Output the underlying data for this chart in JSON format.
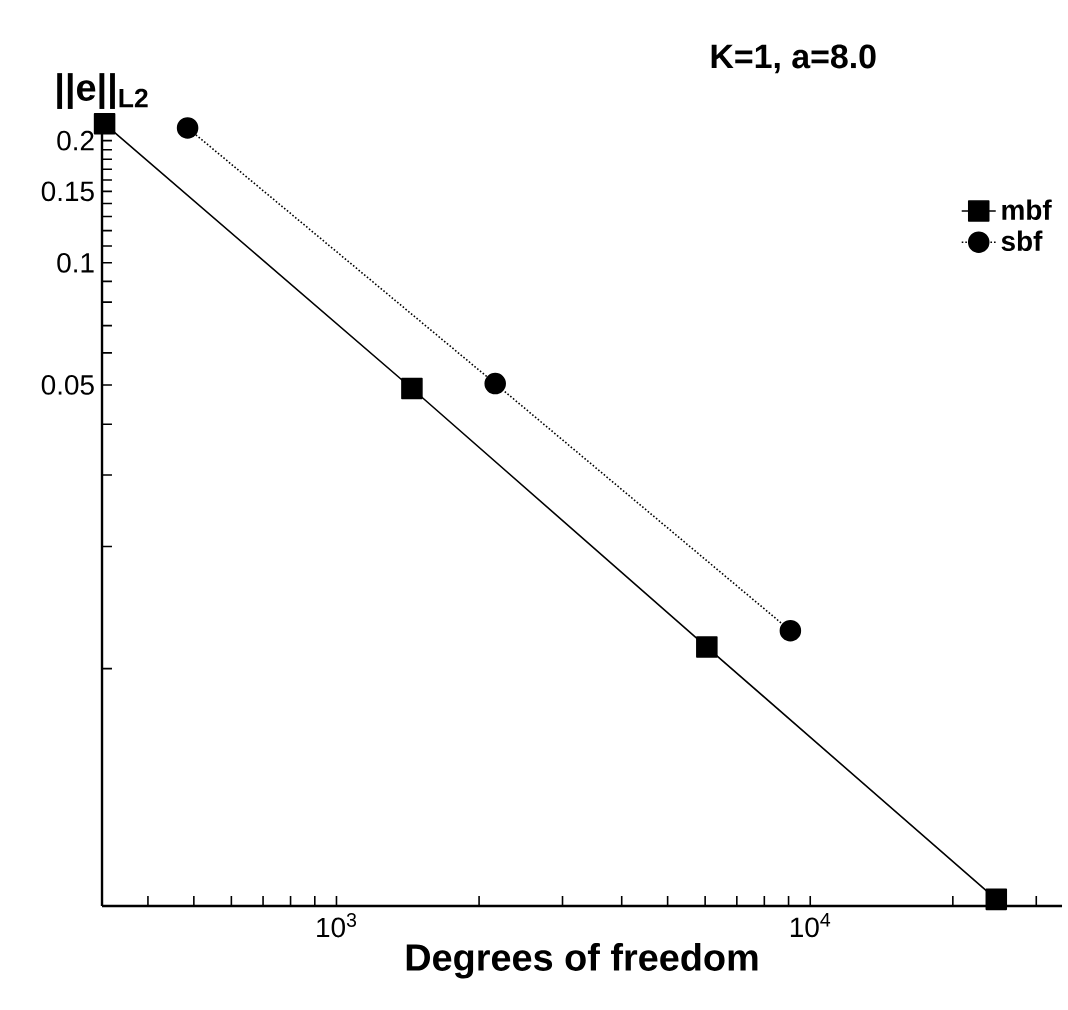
{
  "chart_data": {
    "type": "line",
    "title": "K=1,   a=8.0",
    "xlabel": "Degrees of freedom",
    "ylabel": "||e||$_{L2}$",
    "log": "xy",
    "xlim": [
      320,
      34000
    ],
    "ylim": [
      0.0026,
      0.23
    ],
    "xticks": [
      {
        "value": 400,
        "label": null
      },
      {
        "value": 500,
        "label": null
      },
      {
        "value": 600,
        "label": null
      },
      {
        "value": 700,
        "label": null
      },
      {
        "value": 800,
        "label": null
      },
      {
        "value": 900,
        "label": null
      },
      {
        "value": 1000,
        "label": "10$^{3}$"
      },
      {
        "value": 2000,
        "label": null
      },
      {
        "value": 3000,
        "label": null
      },
      {
        "value": 4000,
        "label": null
      },
      {
        "value": 5000,
        "label": null
      },
      {
        "value": 6000,
        "label": null
      },
      {
        "value": 7000,
        "label": null
      },
      {
        "value": 8000,
        "label": null
      },
      {
        "value": 9000,
        "label": null
      },
      {
        "value": 10000,
        "label": "10$^{4}$"
      },
      {
        "value": 20000,
        "label": null
      },
      {
        "value": 30000,
        "label": null
      }
    ],
    "yticks": [
      {
        "value": 0.01,
        "label": null
      },
      {
        "value": 0.02,
        "label": null
      },
      {
        "value": 0.03,
        "label": null
      },
      {
        "value": 0.04,
        "label": null
      },
      0.05,
      {
        "value": 0.06,
        "label": null
      },
      {
        "value": 0.07,
        "label": null
      },
      {
        "value": 0.08,
        "label": null
      },
      {
        "value": 0.09,
        "label": null
      },
      0.1,
      {
        "value": 0.11,
        "label": null
      },
      {
        "value": 0.12,
        "label": null
      },
      {
        "value": 0.13,
        "label": null
      },
      {
        "value": 0.14,
        "label": null
      },
      0.15,
      {
        "value": 0.16,
        "label": null
      },
      {
        "value": 0.17,
        "label": null
      },
      {
        "value": 0.18,
        "label": null
      },
      {
        "value": 0.19,
        "label": null
      },
      0.2
    ],
    "legend": "top right",
    "grid": false,
    "series": [
      {
        "name": "mbf",
        "color": "#000000",
        "marker": "square",
        "line_style": "solid",
        "x": [
          324,
          1443,
          6050,
          24700
        ],
        "values": [
          0.22,
          0.049,
          0.0113,
          0.0027
        ]
      },
      {
        "name": "sbf",
        "color": "#000000",
        "marker": "circle",
        "line_style": "dotted",
        "x": [
          485,
          2163,
          9080
        ],
        "values": [
          0.215,
          0.0504,
          0.0124
        ]
      }
    ]
  }
}
